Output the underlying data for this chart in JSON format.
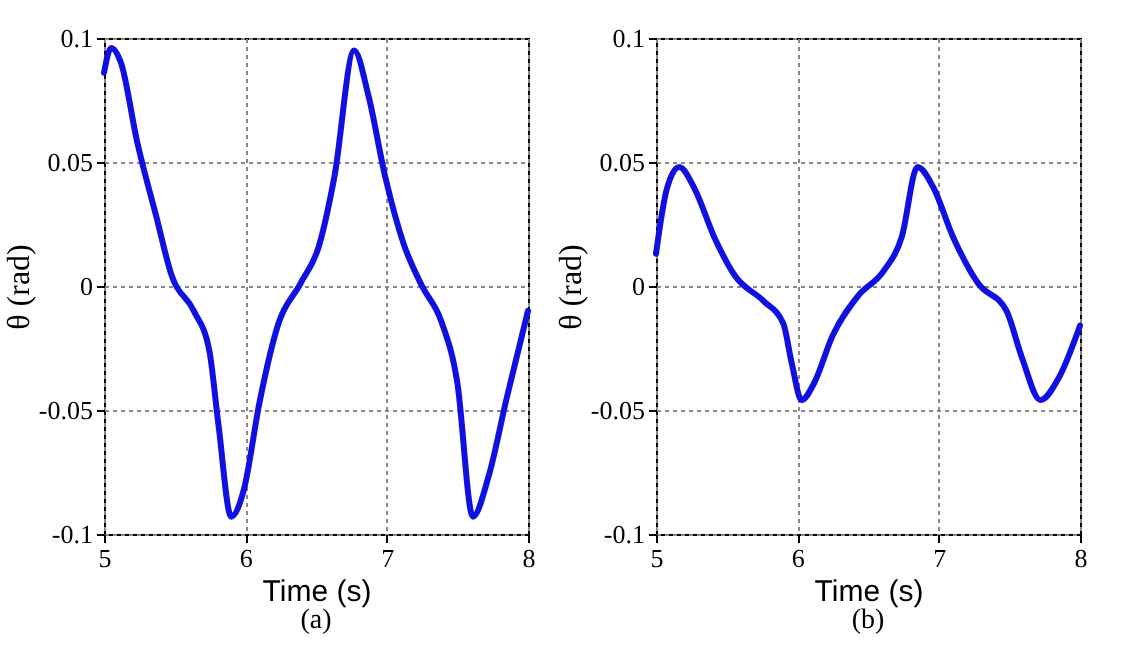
{
  "chart_data": [
    {
      "type": "line",
      "xlabel": "Time (s)",
      "ylabel": "θ (rad)",
      "annotations": [
        "(a)"
      ],
      "xlim": [
        5,
        8
      ],
      "ylim": [
        -0.1,
        0.1
      ],
      "xticks": [
        5,
        6,
        7,
        8
      ],
      "yticks": [
        -0.1,
        -0.05,
        0,
        0.05,
        0.1
      ],
      "grid": true,
      "line_style": "solid",
      "marker": "none",
      "series": [
        {
          "color": "#1010e0",
          "x": [
            5,
            5.05,
            5.12,
            5.235,
            5.37,
            5.48,
            5.635,
            5.745,
            5.81,
            5.9,
            5.99,
            6.1,
            6.235,
            6.39,
            6.52,
            6.63,
            6.77,
            6.87,
            6.99,
            7.12,
            7.25,
            7.385,
            7.5,
            7.61,
            7.72,
            7.85,
            8
          ],
          "values": [
            0.086,
            0.096,
            0.09,
            0.058,
            0.028,
            0.004,
            -0.01,
            -0.026,
            -0.056,
            -0.093,
            -0.082,
            -0.047,
            -0.015,
            0.001,
            0.016,
            0.044,
            0.095,
            0.077,
            0.044,
            0.017,
            0,
            -0.014,
            -0.039,
            -0.093,
            -0.077,
            -0.045,
            -0.01
          ]
        }
      ]
    },
    {
      "type": "line",
      "xlabel": "Time (s)",
      "ylabel": "θ (rad)",
      "annotations": [
        "(b)"
      ],
      "xlim": [
        5,
        8
      ],
      "ylim": [
        -0.1,
        0.1
      ],
      "xticks": [
        5,
        6,
        7,
        8
      ],
      "yticks": [
        -0.1,
        -0.05,
        0,
        0.05,
        0.1
      ],
      "grid": true,
      "line_style": "solid",
      "marker": "none",
      "series": [
        {
          "color": "#1010e0",
          "x": [
            5,
            5.076,
            5.164,
            5.275,
            5.41,
            5.56,
            5.76,
            5.9,
            5.96,
            6.03,
            6.12,
            6.25,
            6.43,
            6.61,
            6.74,
            6.85,
            6.96,
            7.1,
            7.28,
            7.48,
            7.59,
            7.72,
            7.85,
            8
          ],
          "values": [
            0.013,
            0.039,
            0.048,
            0.039,
            0.02,
            0.004,
            -0.006,
            -0.015,
            -0.031,
            -0.046,
            -0.039,
            -0.02,
            -0.004,
            0.006,
            0.02,
            0.048,
            0.04,
            0.02,
            0.001,
            -0.01,
            -0.029,
            -0.046,
            -0.037,
            -0.016
          ]
        }
      ]
    }
  ]
}
